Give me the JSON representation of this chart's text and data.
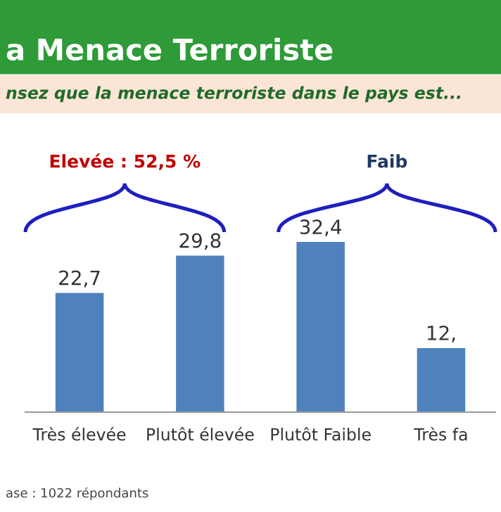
{
  "chart_data": {
    "type": "bar",
    "title": "a Menace Terroriste",
    "subtitle": "nsez que la menace terroriste dans le pays est...",
    "categories": [
      "Très élevée",
      "Plutôt élevée",
      "Plutôt Faible",
      "Très fa"
    ],
    "values": [
      22.7,
      29.8,
      32.4,
      12.2
    ],
    "color": "#4f81bd",
    "value_labels": [
      "22,7",
      "29,8",
      "32,4",
      "12,"
    ],
    "annotations": [
      "Elevée : 52,5 %",
      "Faib",
      "ase : 1022 répondants"
    ],
    "grid": false,
    "legend": false
  }
}
